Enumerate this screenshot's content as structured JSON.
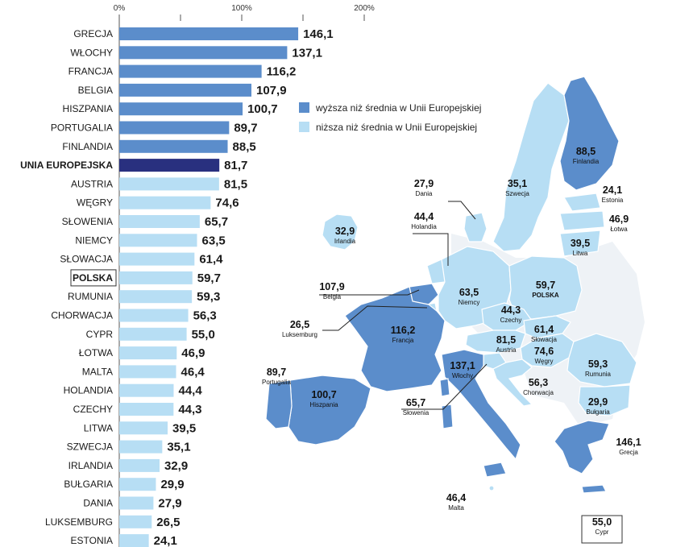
{
  "chart_data": {
    "type": "bar",
    "orientation": "horizontal",
    "title": "",
    "xlabel": "",
    "ylabel": "",
    "x_ticks": [
      "0%",
      "100%",
      "200%"
    ],
    "xlim": [
      0,
      200
    ],
    "grid": false,
    "legend_position": "right of bars",
    "colors": {
      "above": "#5b8dcb",
      "below": "#b7def4",
      "eu": "#29307f"
    },
    "legend": [
      {
        "key": "above",
        "label": "wyższa niż średnia w Unii Europejskiej"
      },
      {
        "key": "below",
        "label": "niższa niż średnia w Unii Europejskiej"
      }
    ],
    "categories": [
      "GRECJA",
      "WŁOCHY",
      "FRANCJA",
      "BELGIA",
      "HISZPANIA",
      "PORTUGALIA",
      "FINLANDIA",
      "UNIA EUROPEJSKA",
      "AUSTRIA",
      "WĘGRY",
      "SŁOWENIA",
      "NIEMCY",
      "SŁOWACJA",
      "POLSKA",
      "RUMUNIA",
      "CHORWACJA",
      "CYPR",
      "ŁOTWA",
      "MALTA",
      "HOLANDIA",
      "CZECHY",
      "LITWA",
      "SZWECJA",
      "IRLANDIA",
      "BUŁGARIA",
      "DANIA",
      "LUKSEMBURG",
      "ESTONIA"
    ],
    "values": [
      146.1,
      137.1,
      116.2,
      107.9,
      100.7,
      89.7,
      88.5,
      81.7,
      81.5,
      74.6,
      65.7,
      63.5,
      61.4,
      59.7,
      59.3,
      56.3,
      55.0,
      46.9,
      46.4,
      44.4,
      44.3,
      39.5,
      35.1,
      32.9,
      29.9,
      27.9,
      26.5,
      24.1
    ],
    "value_labels": [
      "146,1",
      "137,1",
      "116,2",
      "107,9",
      "100,7",
      "89,7",
      "88,5",
      "81,7",
      "81,5",
      "74,6",
      "65,7",
      "63,5",
      "61,4",
      "59,7",
      "59,3",
      "56,3",
      "55,0",
      "46,9",
      "46,4",
      "44,4",
      "44,3",
      "39,5",
      "35,1",
      "32,9",
      "29,9",
      "27,9",
      "26,5",
      "24,1"
    ],
    "bar_class": [
      "above",
      "above",
      "above",
      "above",
      "above",
      "above",
      "above",
      "eu",
      "below",
      "below",
      "below",
      "below",
      "below",
      "below",
      "below",
      "below",
      "below",
      "below",
      "below",
      "below",
      "below",
      "below",
      "below",
      "below",
      "below",
      "below",
      "below",
      "below"
    ],
    "emphasis": {
      "bold": [
        "UNIA EUROPEJSKA",
        "POLSKA"
      ],
      "boxed": [
        "POLSKA"
      ]
    }
  },
  "map": {
    "labels": [
      {
        "id": "finlandia",
        "value": "88,5",
        "name": "Finlandia"
      },
      {
        "id": "szwecja",
        "value": "35,1",
        "name": "Szwecja"
      },
      {
        "id": "estonia",
        "value": "24,1",
        "name": "Estonia"
      },
      {
        "id": "lotwa",
        "value": "46,9",
        "name": "Łotwa"
      },
      {
        "id": "litwa",
        "value": "39,5",
        "name": "Litwa"
      },
      {
        "id": "dania",
        "value": "27,9",
        "name": "Dania"
      },
      {
        "id": "holandia",
        "value": "44,4",
        "name": "Holandia"
      },
      {
        "id": "irlandia",
        "value": "32,9",
        "name": "Irlandia"
      },
      {
        "id": "belgia",
        "value": "107,9",
        "name": "Belgia"
      },
      {
        "id": "luksemburg",
        "value": "26,5",
        "name": "Luksemburg"
      },
      {
        "id": "francja",
        "value": "116,2",
        "name": "Francja"
      },
      {
        "id": "niemcy",
        "value": "63,5",
        "name": "Niemcy"
      },
      {
        "id": "polska",
        "value": "59,7",
        "name": "POLSKA"
      },
      {
        "id": "czechy",
        "value": "44,3",
        "name": "Czechy"
      },
      {
        "id": "slowacja",
        "value": "61,4",
        "name": "Słowacja"
      },
      {
        "id": "austria",
        "value": "81,5",
        "name": "Austria"
      },
      {
        "id": "wegry",
        "value": "74,6",
        "name": "Węgry"
      },
      {
        "id": "rumunia",
        "value": "59,3",
        "name": "Rumunia"
      },
      {
        "id": "portugalia",
        "value": "89,7",
        "name": "Portugalia"
      },
      {
        "id": "hiszpania",
        "value": "100,7",
        "name": "Hiszpania"
      },
      {
        "id": "wlochy",
        "value": "137,1",
        "name": "Włochy"
      },
      {
        "id": "chorwacja",
        "value": "56,3",
        "name": "Chorwacja"
      },
      {
        "id": "slowenia",
        "value": "65,7",
        "name": "Słowenia"
      },
      {
        "id": "bulgaria",
        "value": "29,9",
        "name": "Bułgaria"
      },
      {
        "id": "grecja",
        "value": "146,1",
        "name": "Grecja"
      },
      {
        "id": "malta",
        "value": "46,4",
        "name": "Malta"
      },
      {
        "id": "cypr",
        "value": "55,0",
        "name": "Cypr"
      }
    ]
  }
}
